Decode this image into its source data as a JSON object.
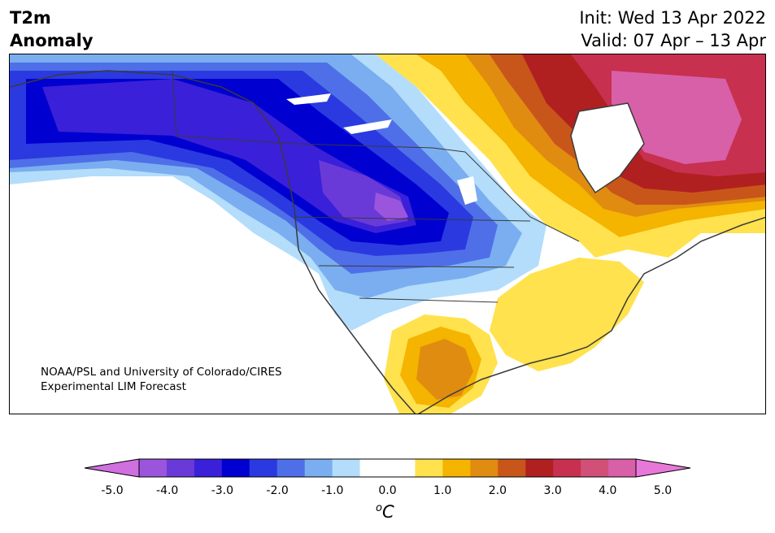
{
  "header": {
    "title_line1": "T2m",
    "title_line2": "Anomaly",
    "init_text": "Init: Wed 13 Apr 2022",
    "valid_text": "Valid: 07 Apr – 13 Apr"
  },
  "map": {
    "region": "North America",
    "credit_line1": "NOAA/PSL and University of Colorado/CIRES",
    "credit_line2": "Experimental LIM Forecast"
  },
  "colorbar": {
    "tick_labels": [
      "-5.0",
      "-4.0",
      "-3.0",
      "-2.0",
      "-1.0",
      "0.0",
      "1.0",
      "2.0",
      "3.0",
      "4.0",
      "5.0"
    ],
    "unit_base": "o",
    "unit_text": "C",
    "colors": [
      "#d070e0",
      "#9b55dd",
      "#6a3ad8",
      "#3a20d8",
      "#0000d0",
      "#2a3ae0",
      "#4f6fe8",
      "#7aaef0",
      "#b3ddfb",
      "#ffffff",
      "#ffffff",
      "#ffe24d",
      "#f4b400",
      "#e08c10",
      "#c8561a",
      "#b02020",
      "#c83050",
      "#d05078",
      "#d860a8",
      "#e878d8"
    ]
  }
}
